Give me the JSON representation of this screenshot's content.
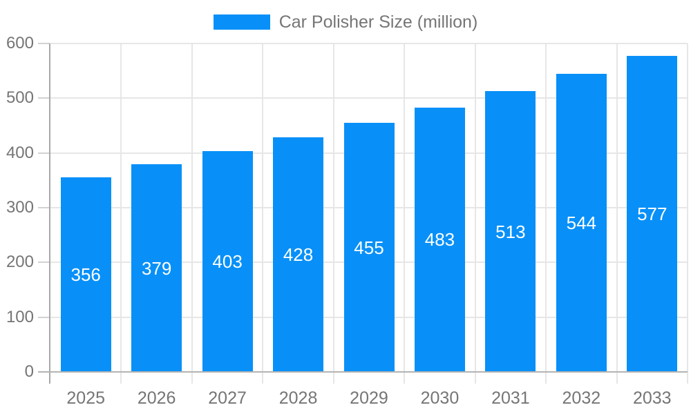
{
  "chart_data": {
    "type": "bar",
    "title": "Car Polisher Size (million)",
    "legend": "Car Polisher Size (million)",
    "legend_position": "top-center",
    "categories": [
      "2025",
      "2026",
      "2027",
      "2028",
      "2029",
      "2030",
      "2031",
      "2032",
      "2033"
    ],
    "values": [
      356,
      379,
      403,
      428,
      455,
      483,
      513,
      544,
      577
    ],
    "xlabel": "",
    "ylabel": "",
    "ylim": [
      0,
      600
    ],
    "yticks": [
      0,
      100,
      200,
      300,
      400,
      500,
      600
    ],
    "grid": true,
    "bar_color": "#0890f8",
    "value_label_color": "#ffffff",
    "axis_text_color": "#757575",
    "gridline_color": "#e6e6e6"
  }
}
